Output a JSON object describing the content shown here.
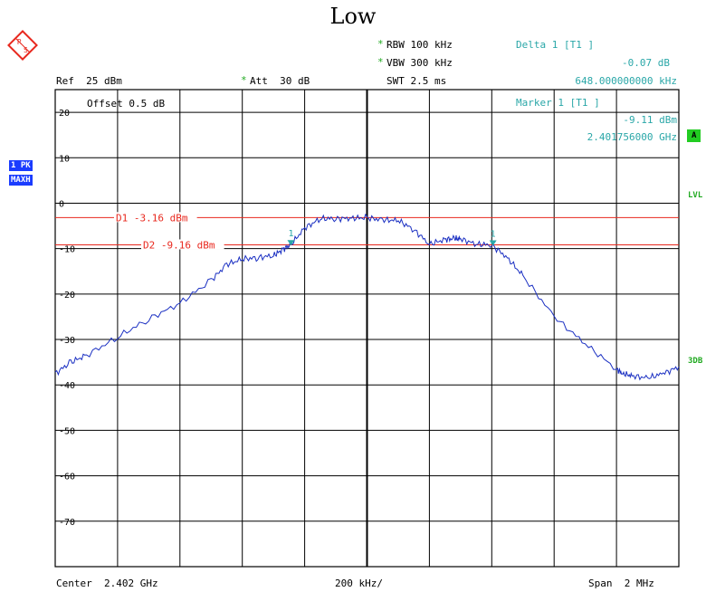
{
  "title": "Low",
  "header": {
    "ref": "Ref  25 dBm",
    "att": "Att  30 dB",
    "rbw": "RBW 100 kHz",
    "vbw": "VBW 300 kHz",
    "swt": "SWT 2.5 ms",
    "offset": "Offset  0.5 dB",
    "star": "*"
  },
  "markers": {
    "delta_label": "Delta 1 [T1 ]",
    "delta_level": "-0.07 dB",
    "delta_freq": "648.000000000 kHz",
    "marker_label": "Marker 1 [T1 ]",
    "marker_level": "-9.11 dBm",
    "marker_freq": "2.401756000 GHz"
  },
  "side": {
    "trace_badge_1": "1 PK",
    "trace_badge_2": "MAXH",
    "tag_a": "A",
    "lvl": "LVL",
    "db3": "3DB"
  },
  "footer": {
    "center": "Center  2.402 GHz",
    "div": "200 kHz/",
    "span": "Span  2 MHz"
  },
  "colors": {
    "trace": "#1a2fc2",
    "lines": "#e8281e",
    "marker": "#2aa7a8",
    "grid": "#000000"
  },
  "chart_data": {
    "type": "line",
    "x_unit": "MHz offset from center",
    "y_unit": "dBm",
    "xlim": [
      -1,
      1
    ],
    "ylim": [
      -80,
      25
    ],
    "yticks": [
      20,
      10,
      0,
      -10,
      -20,
      -30,
      -40,
      -50,
      -60,
      -70
    ],
    "ytick_labels": [
      "20",
      "10",
      "0",
      "-10",
      "-20",
      "-30",
      "-40",
      "-50",
      "-60",
      "-70"
    ],
    "grid": true,
    "hlines": [
      {
        "label": "D1 -3.16 dBm",
        "value": -3.16
      },
      {
        "label": "D2 -9.16 dBm",
        "value": -9.16
      }
    ],
    "marker_points": [
      {
        "label": "1",
        "x": -0.244,
        "y": -9.11
      },
      {
        "label": "1",
        "x": 0.404,
        "y": -9.18
      }
    ],
    "series": [
      {
        "x": [
          -1.0,
          -0.95,
          -0.9,
          -0.8,
          -0.7,
          -0.6,
          -0.5,
          -0.45,
          -0.4,
          -0.35,
          -0.3,
          -0.27,
          -0.244,
          -0.2,
          -0.15,
          -0.1,
          -0.05,
          0.0,
          0.05,
          0.1,
          0.15,
          0.2,
          0.25,
          0.28,
          0.3,
          0.35,
          0.4,
          0.45,
          0.5,
          0.6,
          0.7,
          0.8,
          0.82,
          0.85,
          0.9,
          0.95,
          1.0
        ],
        "y": [
          -37.5,
          -35.0,
          -33.5,
          -29.5,
          -25.5,
          -22.0,
          -17.0,
          -13.5,
          -12.3,
          -12.0,
          -11.5,
          -10.2,
          -9.11,
          -5.5,
          -3.4,
          -3.4,
          -3.3,
          -3.2,
          -3.7,
          -3.8,
          -5.8,
          -9.0,
          -8.0,
          -7.8,
          -7.9,
          -9.0,
          -9.2,
          -12.0,
          -16.0,
          -25.0,
          -31.0,
          -36.5,
          -37.5,
          -38.0,
          -38.5,
          -37.5,
          -36.0
        ]
      }
    ]
  }
}
